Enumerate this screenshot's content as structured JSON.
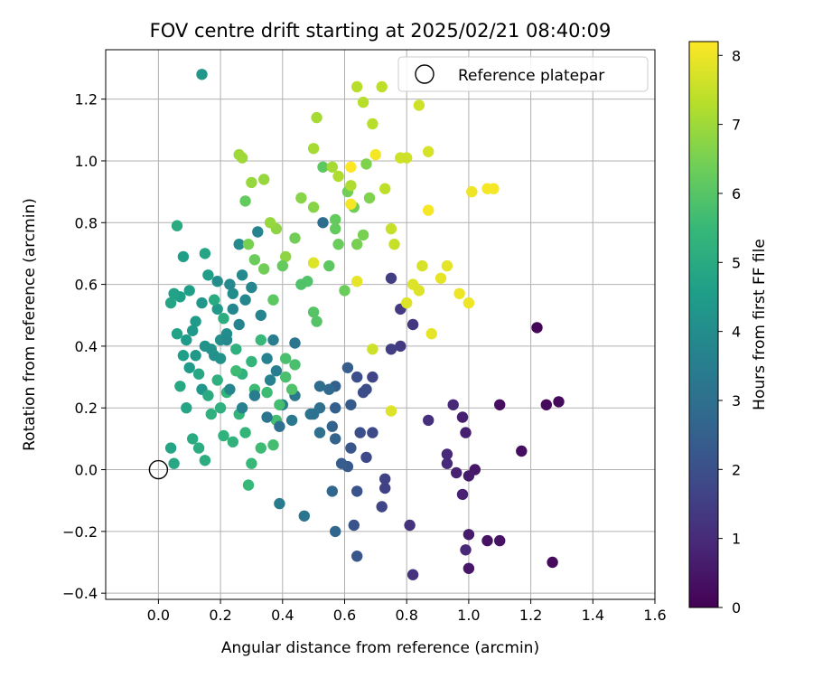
{
  "chart_data": {
    "type": "scatter",
    "title": "FOV centre drift starting at 2025/02/21 08:40:09",
    "xlabel": "Angular distance from reference (arcmin)",
    "ylabel": "Rotation from reference (arcmin)",
    "xlim": [
      -0.17,
      1.6
    ],
    "ylim": [
      -0.42,
      1.36
    ],
    "xticks": [
      "0.0",
      "0.2",
      "0.4",
      "0.6",
      "0.8",
      "1.0",
      "1.2",
      "1.4",
      "1.6"
    ],
    "yticks": [
      "−0.4",
      "−0.2",
      "0.0",
      "0.2",
      "0.4",
      "0.6",
      "0.8",
      "1.0",
      "1.2"
    ],
    "grid": true,
    "legend": {
      "position": "top-right",
      "entries": [
        "Reference platepar"
      ]
    },
    "reference_point": {
      "x": 0.0,
      "y": 0.0,
      "label": "Reference platepar"
    },
    "colorbar": {
      "label": "Hours from first FF file",
      "min": 0,
      "max": 8.2,
      "ticks": [
        "0",
        "1",
        "2",
        "3",
        "4",
        "5",
        "6",
        "7",
        "8"
      ],
      "colormap": "viridis",
      "colors": [
        "#440154",
        "#482878",
        "#3e4a89",
        "#31688e",
        "#26828e",
        "#1f9e89",
        "#35b779",
        "#6ece58",
        "#b5de2b",
        "#fde725"
      ]
    },
    "point_columns": [
      "x",
      "y",
      "hours"
    ],
    "points": [
      [
        1.22,
        0.46,
        0.1
      ],
      [
        1.29,
        0.22,
        0.2
      ],
      [
        1.25,
        0.21,
        0.2
      ],
      [
        1.27,
        -0.3,
        0.2
      ],
      [
        1.17,
        0.06,
        0.3
      ],
      [
        1.1,
        0.21,
        0.3
      ],
      [
        1.1,
        -0.23,
        0.4
      ],
      [
        1.06,
        -0.23,
        0.4
      ],
      [
        1.02,
        0.0,
        0.5
      ],
      [
        1.0,
        -0.32,
        0.5
      ],
      [
        1.0,
        -0.21,
        0.6
      ],
      [
        1.0,
        -0.02,
        0.6
      ],
      [
        0.99,
        0.12,
        0.7
      ],
      [
        0.98,
        0.17,
        0.7
      ],
      [
        0.96,
        -0.01,
        0.8
      ],
      [
        0.98,
        -0.08,
        0.8
      ],
      [
        0.99,
        -0.26,
        0.9
      ],
      [
        0.95,
        0.21,
        0.9
      ],
      [
        0.93,
        0.05,
        1.0
      ],
      [
        0.93,
        0.02,
        1.0
      ],
      [
        0.87,
        0.16,
        1.1
      ],
      [
        0.82,
        -0.34,
        1.2
      ],
      [
        0.81,
        -0.18,
        1.2
      ],
      [
        0.82,
        0.47,
        1.3
      ],
      [
        0.78,
        0.4,
        1.4
      ],
      [
        0.78,
        0.52,
        1.4
      ],
      [
        0.75,
        0.39,
        1.5
      ],
      [
        0.75,
        0.62,
        1.5
      ],
      [
        0.73,
        -0.03,
        1.6
      ],
      [
        0.73,
        -0.06,
        1.6
      ],
      [
        0.72,
        -0.12,
        1.7
      ],
      [
        0.69,
        0.3,
        1.7
      ],
      [
        0.69,
        0.12,
        1.8
      ],
      [
        0.67,
        0.04,
        1.8
      ],
      [
        0.67,
        0.26,
        1.9
      ],
      [
        0.66,
        0.25,
        1.9
      ],
      [
        0.65,
        0.12,
        2.0
      ],
      [
        0.64,
        0.3,
        2.0
      ],
      [
        0.64,
        -0.07,
        2.1
      ],
      [
        0.63,
        -0.18,
        2.1
      ],
      [
        0.64,
        -0.28,
        2.2
      ],
      [
        0.62,
        0.07,
        2.2
      ],
      [
        0.62,
        0.21,
        2.3
      ],
      [
        0.61,
        0.01,
        2.3
      ],
      [
        0.61,
        0.33,
        2.4
      ],
      [
        0.59,
        0.02,
        2.4
      ],
      [
        0.57,
        0.27,
        2.5
      ],
      [
        0.57,
        0.2,
        2.5
      ],
      [
        0.57,
        0.1,
        2.6
      ],
      [
        0.56,
        0.14,
        2.6
      ],
      [
        0.56,
        -0.07,
        2.7
      ],
      [
        0.57,
        -0.2,
        2.7
      ],
      [
        0.55,
        0.26,
        2.8
      ],
      [
        0.53,
        0.8,
        2.9
      ],
      [
        0.52,
        0.27,
        2.9
      ],
      [
        0.52,
        0.2,
        3.0
      ],
      [
        0.52,
        0.12,
        3.0
      ],
      [
        0.5,
        0.18,
        3.1
      ],
      [
        0.49,
        0.18,
        3.1
      ],
      [
        0.47,
        -0.15,
        3.2
      ],
      [
        0.44,
        0.41,
        3.2
      ],
      [
        0.44,
        0.24,
        3.3
      ],
      [
        0.43,
        0.16,
        3.3
      ],
      [
        0.39,
        -0.11,
        3.4
      ],
      [
        0.4,
        0.21,
        3.4
      ],
      [
        0.38,
        0.32,
        3.5
      ],
      [
        0.37,
        0.42,
        3.5
      ],
      [
        0.36,
        0.29,
        3.6
      ],
      [
        0.35,
        0.36,
        3.6
      ],
      [
        0.33,
        0.5,
        3.7
      ],
      [
        0.32,
        0.77,
        3.7
      ],
      [
        0.3,
        0.59,
        3.8
      ],
      [
        0.28,
        0.55,
        3.8
      ],
      [
        0.27,
        0.63,
        3.9
      ],
      [
        0.26,
        0.73,
        3.9
      ],
      [
        0.24,
        0.57,
        4.0
      ],
      [
        0.22,
        0.44,
        4.0
      ],
      [
        0.2,
        0.42,
        4.1
      ],
      [
        0.18,
        0.37,
        4.1
      ],
      [
        0.17,
        0.39,
        4.2
      ],
      [
        0.15,
        0.4,
        4.2
      ],
      [
        0.14,
        0.26,
        4.3
      ],
      [
        0.14,
        1.28,
        4.3
      ],
      [
        0.12,
        0.37,
        4.4
      ],
      [
        0.11,
        0.45,
        4.4
      ],
      [
        0.1,
        0.33,
        4.5
      ],
      [
        0.09,
        0.42,
        4.5
      ],
      [
        0.08,
        0.69,
        4.6
      ],
      [
        0.07,
        0.56,
        4.6
      ],
      [
        0.06,
        0.44,
        4.7
      ],
      [
        0.05,
        0.57,
        4.7
      ],
      [
        0.04,
        0.54,
        4.8
      ],
      [
        0.04,
        0.07,
        4.8
      ],
      [
        0.05,
        0.02,
        4.9
      ],
      [
        0.07,
        0.27,
        4.9
      ],
      [
        0.06,
        0.79,
        5.0
      ],
      [
        0.11,
        0.1,
        5.0
      ],
      [
        0.13,
        0.07,
        5.1
      ],
      [
        0.15,
        0.03,
        5.1
      ],
      [
        0.17,
        0.18,
        5.2
      ],
      [
        0.19,
        0.29,
        5.2
      ],
      [
        0.21,
        0.11,
        5.3
      ],
      [
        0.24,
        0.09,
        5.3
      ],
      [
        0.26,
        0.18,
        5.4
      ],
      [
        0.28,
        0.12,
        5.4
      ],
      [
        0.3,
        0.02,
        5.5
      ],
      [
        0.29,
        -0.05,
        5.5
      ],
      [
        0.31,
        0.26,
        5.6
      ],
      [
        0.33,
        0.07,
        5.6
      ],
      [
        0.37,
        0.08,
        5.7
      ],
      [
        0.39,
        0.21,
        5.7
      ],
      [
        0.41,
        0.36,
        5.8
      ],
      [
        0.44,
        0.34,
        5.8
      ],
      [
        0.46,
        0.6,
        5.9
      ],
      [
        0.48,
        0.61,
        5.9
      ],
      [
        0.5,
        0.51,
        6.0
      ],
      [
        0.51,
        0.48,
        6.0
      ],
      [
        0.53,
        0.98,
        6.1
      ],
      [
        0.55,
        0.66,
        6.1
      ],
      [
        0.57,
        0.81,
        6.2
      ],
      [
        0.57,
        0.78,
        6.2
      ],
      [
        0.58,
        0.73,
        6.3
      ],
      [
        0.6,
        0.58,
        6.3
      ],
      [
        0.61,
        0.9,
        6.4
      ],
      [
        0.63,
        0.85,
        6.4
      ],
      [
        0.64,
        0.73,
        6.5
      ],
      [
        0.66,
        0.76,
        6.5
      ],
      [
        0.67,
        0.99,
        6.6
      ],
      [
        0.68,
        0.88,
        6.6
      ],
      [
        0.5,
        0.85,
        6.7
      ],
      [
        0.46,
        0.88,
        6.7
      ],
      [
        0.41,
        0.69,
        6.8
      ],
      [
        0.38,
        0.78,
        6.8
      ],
      [
        0.36,
        0.8,
        6.9
      ],
      [
        0.34,
        0.94,
        6.9
      ],
      [
        0.3,
        0.93,
        6.9
      ],
      [
        0.26,
        1.02,
        7.0
      ],
      [
        0.27,
        1.01,
        7.0
      ],
      [
        0.51,
        1.14,
        7.1
      ],
      [
        0.5,
        1.04,
        7.1
      ],
      [
        0.56,
        0.98,
        7.1
      ],
      [
        0.58,
        0.95,
        7.2
      ],
      [
        0.62,
        0.92,
        7.2
      ],
      [
        0.64,
        1.24,
        7.3
      ],
      [
        0.66,
        1.19,
        7.3
      ],
      [
        0.69,
        1.12,
        7.3
      ],
      [
        0.72,
        1.24,
        7.4
      ],
      [
        0.73,
        0.91,
        7.4
      ],
      [
        0.75,
        0.78,
        7.5
      ],
      [
        0.76,
        0.73,
        7.5
      ],
      [
        0.78,
        1.01,
        7.6
      ],
      [
        0.8,
        1.01,
        7.6
      ],
      [
        0.84,
        1.18,
        7.6
      ],
      [
        0.87,
        1.03,
        7.7
      ],
      [
        0.85,
        0.66,
        7.7
      ],
      [
        0.82,
        0.6,
        7.8
      ],
      [
        0.84,
        0.58,
        7.8
      ],
      [
        0.8,
        0.54,
        7.8
      ],
      [
        0.88,
        0.44,
        7.9
      ],
      [
        0.91,
        0.62,
        7.9
      ],
      [
        0.93,
        0.66,
        7.9
      ],
      [
        0.97,
        0.57,
        8.0
      ],
      [
        1.0,
        0.54,
        8.0
      ],
      [
        1.01,
        0.9,
        8.0
      ],
      [
        1.06,
        0.91,
        8.1
      ],
      [
        1.08,
        0.91,
        8.1
      ],
      [
        0.87,
        0.84,
        8.1
      ],
      [
        0.75,
        0.19,
        7.8
      ],
      [
        0.69,
        0.39,
        7.6
      ],
      [
        0.7,
        1.02,
        8.1
      ],
      [
        0.62,
        0.98,
        8.2
      ],
      [
        0.62,
        0.86,
        8.1
      ],
      [
        0.64,
        0.61,
        7.9
      ],
      [
        0.5,
        0.67,
        7.8
      ],
      [
        0.44,
        0.75,
        6.4
      ],
      [
        0.28,
        0.87,
        6.2
      ],
      [
        0.22,
        0.42,
        3.9
      ],
      [
        0.24,
        0.52,
        3.8
      ],
      [
        0.26,
        0.47,
        3.7
      ],
      [
        0.19,
        0.52,
        4.4
      ],
      [
        0.16,
        0.63,
        4.6
      ],
      [
        0.15,
        0.7,
        4.8
      ],
      [
        0.18,
        0.55,
        5.0
      ],
      [
        0.21,
        0.49,
        5.1
      ],
      [
        0.25,
        0.39,
        5.2
      ],
      [
        0.27,
        0.31,
        5.3
      ],
      [
        0.3,
        0.35,
        5.4
      ],
      [
        0.33,
        0.42,
        5.5
      ],
      [
        0.35,
        0.25,
        5.6
      ],
      [
        0.38,
        0.16,
        5.7
      ],
      [
        0.41,
        0.3,
        5.8
      ],
      [
        0.43,
        0.26,
        5.9
      ],
      [
        0.37,
        0.55,
        6.1
      ],
      [
        0.4,
        0.66,
        6.2
      ],
      [
        0.31,
        0.68,
        6.3
      ],
      [
        0.34,
        0.65,
        6.4
      ],
      [
        0.29,
        0.73,
        6.5
      ],
      [
        0.25,
        0.32,
        5.6
      ],
      [
        0.22,
        0.25,
        5.4
      ],
      [
        0.2,
        0.2,
        5.2
      ],
      [
        0.16,
        0.24,
        5.0
      ],
      [
        0.13,
        0.31,
        4.9
      ],
      [
        0.09,
        0.2,
        4.8
      ],
      [
        0.08,
        0.37,
        4.6
      ],
      [
        0.12,
        0.48,
        4.5
      ],
      [
        0.2,
        0.36,
        4.2
      ],
      [
        0.23,
        0.26,
        3.8
      ],
      [
        0.27,
        0.2,
        3.6
      ],
      [
        0.31,
        0.24,
        3.4
      ],
      [
        0.35,
        0.17,
        3.2
      ],
      [
        0.39,
        0.14,
        3.0
      ],
      [
        0.23,
        0.6,
        3.9
      ],
      [
        0.19,
        0.61,
        4.0
      ],
      [
        0.14,
        0.54,
        4.3
      ],
      [
        0.1,
        0.58,
        4.6
      ]
    ]
  }
}
